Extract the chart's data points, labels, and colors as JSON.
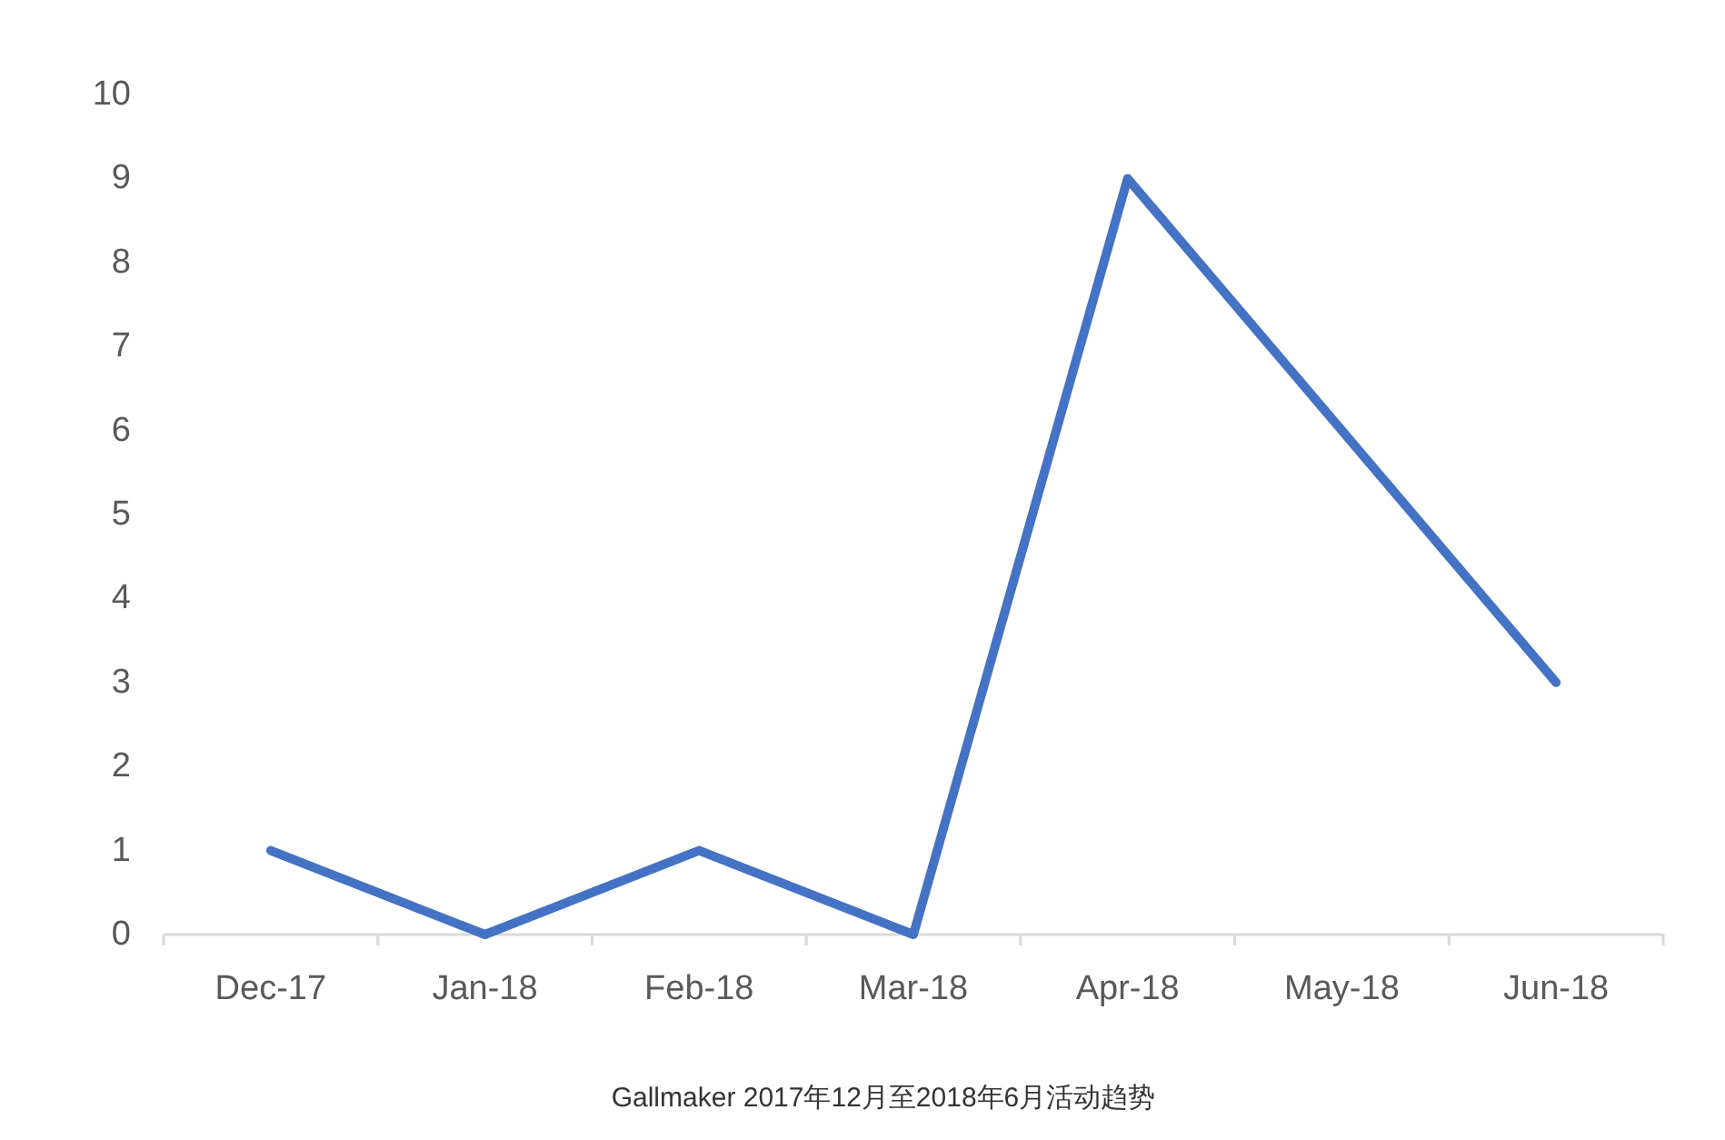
{
  "chart_data": {
    "type": "line",
    "categories": [
      "Dec-17",
      "Jan-18",
      "Feb-18",
      "Mar-18",
      "Apr-18",
      "May-18",
      "Jun-18"
    ],
    "series": [
      {
        "color": "#4472c4",
        "values": [
          1,
          0,
          1,
          0,
          9,
          6,
          3
        ]
      }
    ],
    "ylim": [
      0,
      10
    ],
    "yticks": [
      0,
      1,
      2,
      3,
      4,
      5,
      6,
      7,
      8,
      9,
      10
    ],
    "annotations": [
      "Gallmaker 2017年12月至2018年6月活动趋势"
    ]
  }
}
